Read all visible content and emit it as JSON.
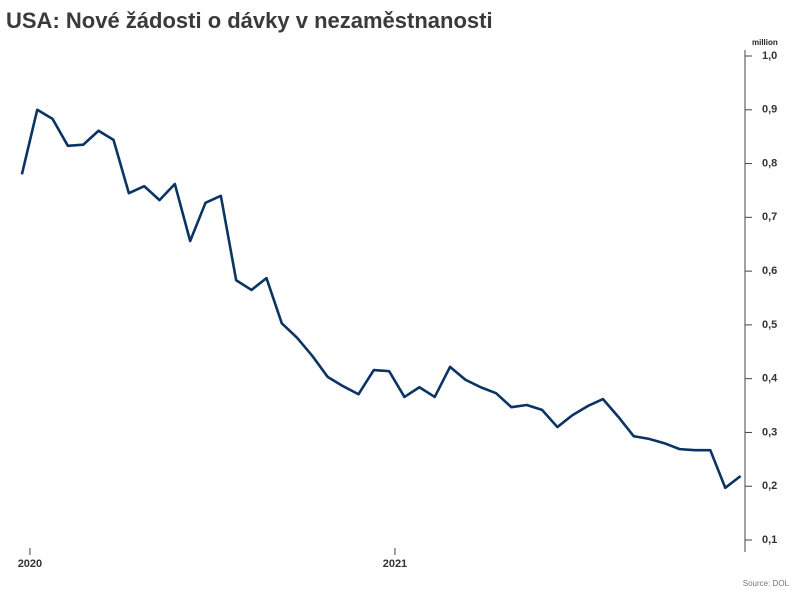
{
  "chart_data": {
    "type": "line",
    "title": "USA: Nové žádosti o dávky v nezaměstnanosti",
    "y_unit": "million",
    "source": "Source: DOL",
    "x": [
      2019.978,
      2020.02,
      2020.062,
      2020.104,
      2020.146,
      2020.188,
      2020.229,
      2020.271,
      2020.313,
      2020.355,
      2020.397,
      2020.439,
      2020.481,
      2020.523,
      2020.565,
      2020.607,
      2020.648,
      2020.69,
      2020.732,
      2020.774,
      2020.816,
      2020.858,
      2020.9,
      2020.942,
      2020.984,
      2021.026,
      2021.067,
      2021.109,
      2021.151,
      2021.193,
      2021.235,
      2021.277,
      2021.319,
      2021.361,
      2021.403,
      2021.445,
      2021.486,
      2021.528,
      2021.57,
      2021.612,
      2021.654,
      2021.696,
      2021.738,
      2021.78,
      2021.822,
      2021.864,
      2021.905,
      2021.947
    ],
    "series": [
      {
        "color": "#0b3464",
        "values": [
          0.78,
          0.9,
          0.883,
          0.833,
          0.835,
          0.861,
          0.844,
          0.745,
          0.758,
          0.732,
          0.762,
          0.656,
          0.727,
          0.74,
          0.583,
          0.565,
          0.587,
          0.503,
          0.476,
          0.442,
          0.403,
          0.386,
          0.371,
          0.416,
          0.414,
          0.366,
          0.384,
          0.366,
          0.422,
          0.398,
          0.384,
          0.373,
          0.347,
          0.351,
          0.342,
          0.31,
          0.332,
          0.349,
          0.362,
          0.329,
          0.293,
          0.288,
          0.28,
          0.269,
          0.267,
          0.267,
          0.197,
          0.219
        ]
      }
    ],
    "xlim": [
      2019.918,
      2021.959
    ],
    "xticks": [
      2020,
      2021
    ],
    "ylim": [
      0.1,
      1.0
    ],
    "yticks": [
      {
        "value": 0.1,
        "label": "0,1"
      },
      {
        "value": 0.2,
        "label": "0,2"
      },
      {
        "value": 0.3,
        "label": "0,3"
      },
      {
        "value": 0.4,
        "label": "0,4"
      },
      {
        "value": 0.5,
        "label": "0,5"
      },
      {
        "value": 0.6,
        "label": "0,6"
      },
      {
        "value": 0.7,
        "label": "0,7"
      },
      {
        "value": 0.8,
        "label": "0,8"
      },
      {
        "value": 0.9,
        "label": "0,9"
      },
      {
        "value": 1.0,
        "label": "1,0"
      }
    ],
    "grid": false
  }
}
